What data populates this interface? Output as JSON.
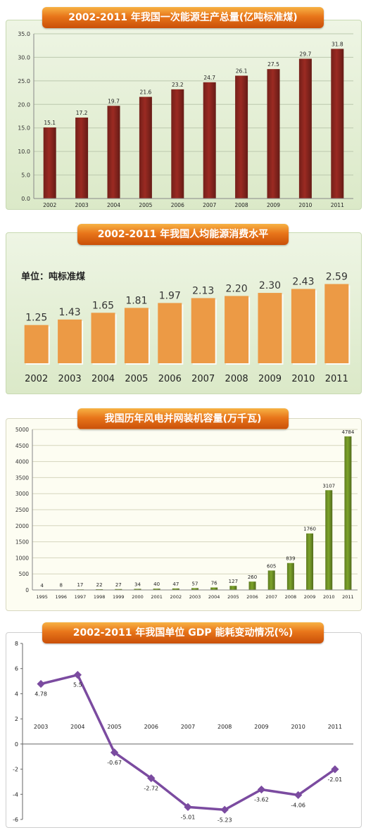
{
  "charts": {
    "production": {
      "title": "2002-2011 年我国一次能源生产总量(亿吨标准煤)",
      "bar_color": "#9b2a22",
      "yticks": [
        "0.0",
        "5.0",
        "10.0",
        "15.0",
        "20.0",
        "25.0",
        "30.0",
        "35.0"
      ]
    },
    "percapita": {
      "title": "2002-2011 年我国人均能源消费水平",
      "unit": "单位：吨标准煤",
      "bar_color": "#ec9a45"
    },
    "wind": {
      "title": "我国历年风电并网装机容量(万千瓦)",
      "bar_color": "#7da42a",
      "yticks": [
        "0",
        "500",
        "1000",
        "1500",
        "2000",
        "2500",
        "3000",
        "3500",
        "4000",
        "4500",
        "5000"
      ]
    },
    "gdp": {
      "title": "2002-2011 年我国单位 GDP 能耗变动情况(%)",
      "line_color": "#7b4ba0",
      "yticks": [
        "-6",
        "-4",
        "-2",
        "0",
        "2",
        "4",
        "6",
        "8"
      ]
    }
  },
  "chart_data": [
    {
      "type": "bar",
      "title": "2002-2011 年我国一次能源生产总量(亿吨标准煤)",
      "categories": [
        "2002",
        "2003",
        "2004",
        "2005",
        "2006",
        "2007",
        "2008",
        "2009",
        "2010",
        "2011"
      ],
      "values": [
        15.1,
        17.2,
        19.7,
        21.6,
        23.2,
        24.7,
        26.1,
        27.5,
        29.7,
        31.8
      ],
      "labels": [
        "15.1",
        "17.2",
        "19.7",
        "21.6",
        "23.2",
        "24.7",
        "26.1",
        "27.5",
        "29.7",
        "31.8"
      ],
      "ylim": [
        0,
        35
      ],
      "grid": true
    },
    {
      "type": "bar",
      "title": "2002-2011 年我国人均能源消费水平",
      "categories": [
        "2002",
        "2003",
        "2004",
        "2005",
        "2006",
        "2007",
        "2008",
        "2009",
        "2010",
        "2011"
      ],
      "values": [
        1.25,
        1.43,
        1.65,
        1.81,
        1.97,
        2.13,
        2.2,
        2.3,
        2.43,
        2.59
      ],
      "labels": [
        "1.25",
        "1.43",
        "1.65",
        "1.81",
        "1.97",
        "2.13",
        "2.20",
        "2.30",
        "2.43",
        "2.59"
      ],
      "ylim": [
        0,
        2.9
      ],
      "grid": false
    },
    {
      "type": "bar",
      "title": "我国历年风电并网装机容量(万千瓦)",
      "categories": [
        "1995",
        "1996",
        "1997",
        "1998",
        "1999",
        "2000",
        "2001",
        "2002",
        "2003",
        "2004",
        "2005",
        "2006",
        "2007",
        "2008",
        "2009",
        "2010",
        "2011"
      ],
      "values": [
        4,
        8,
        17,
        22,
        27,
        34,
        40,
        47,
        57,
        76,
        127,
        260,
        605,
        839,
        1760,
        3107,
        4784
      ],
      "labels": [
        "4",
        "8",
        "17",
        "22",
        "27",
        "34",
        "40",
        "47",
        "57",
        "76",
        "127",
        "260",
        "605",
        "839",
        "1760",
        "3107",
        "4784"
      ],
      "ylim": [
        0,
        5000
      ],
      "grid": true
    },
    {
      "type": "line",
      "title": "2002-2011 年我国单位 GDP 能耗变动情况(%)",
      "categories": [
        "2003",
        "2004",
        "2005",
        "2006",
        "2007",
        "2008",
        "2009",
        "2010",
        "2011"
      ],
      "values": [
        4.78,
        5.5,
        -0.67,
        -2.72,
        -5.01,
        -5.23,
        -3.62,
        -4.06,
        -2.01
      ],
      "labels": [
        "4.78",
        "5.5",
        "-0.67",
        "-2.72",
        "-5.01",
        "-5.23",
        "-3.62",
        "-4.06",
        "-2.01"
      ],
      "ylim": [
        -6,
        8
      ],
      "grid": false
    }
  ]
}
